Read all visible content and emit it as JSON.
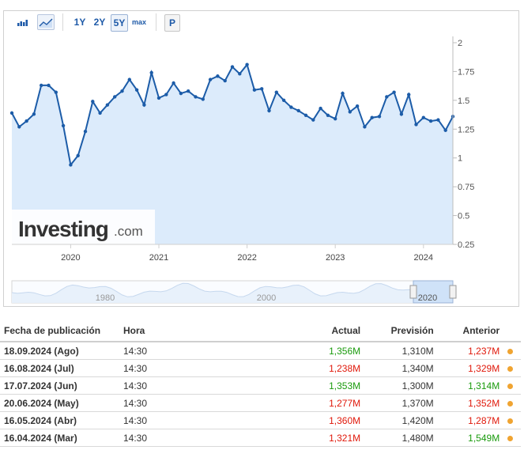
{
  "toolbar": {
    "icons": [
      "bar-chart-icon",
      "line-chart-icon"
    ],
    "ranges": [
      "1Y",
      "2Y",
      "5Y",
      "max"
    ],
    "active_range": "5Y",
    "p_label": "P"
  },
  "brand": {
    "logo": "Investing.com"
  },
  "colors": {
    "line": "#1c5ca8",
    "fill": "#dcebfb",
    "green": "#1a9b0d",
    "red": "#e0180a",
    "dot": "#f0a431"
  },
  "chart_data": {
    "type": "area",
    "x_tick_labels": [
      "2020",
      "2021",
      "2022",
      "2023",
      "2024"
    ],
    "y_tick_labels": [
      "2",
      "1.75",
      "1.5",
      "1.25",
      "1",
      "0.75",
      "0.5",
      "0.25"
    ],
    "ylim": [
      0.25,
      2
    ],
    "y_axis_side": "right",
    "grid": false,
    "x_start": "2019-09",
    "x_end": "2024-08",
    "series": [
      {
        "values": [
          1.39,
          1.27,
          1.32,
          1.38,
          1.63,
          1.63,
          1.57,
          1.28,
          0.94,
          1.02,
          1.23,
          1.49,
          1.39,
          1.46,
          1.53,
          1.58,
          1.68,
          1.59,
          1.46,
          1.74,
          1.52,
          1.55,
          1.65,
          1.56,
          1.58,
          1.53,
          1.51,
          1.68,
          1.71,
          1.67,
          1.79,
          1.73,
          1.81,
          1.59,
          1.6,
          1.41,
          1.57,
          1.5,
          1.44,
          1.41,
          1.37,
          1.33,
          1.43,
          1.37,
          1.34,
          1.56,
          1.4,
          1.45,
          1.27,
          1.35,
          1.36,
          1.53,
          1.57,
          1.38,
          1.55,
          1.29,
          1.35,
          1.32,
          1.33,
          1.24,
          1.36
        ]
      }
    ]
  },
  "navigator": {
    "labels": [
      "1980",
      "2000",
      "2020"
    ]
  },
  "table": {
    "headers": [
      "Fecha de publicación",
      "Hora",
      "Actual",
      "Previsión",
      "Anterior"
    ],
    "rows": [
      {
        "date": "18.09.2024 (Ago)",
        "time": "14:30",
        "actual": "1,356M",
        "actual_color": "green",
        "forecast": "1,310M",
        "previous": "1,237M",
        "previous_color": "red"
      },
      {
        "date": "16.08.2024 (Jul)",
        "time": "14:30",
        "actual": "1,238M",
        "actual_color": "red",
        "forecast": "1,340M",
        "previous": "1,329M",
        "previous_color": "red"
      },
      {
        "date": "17.07.2024 (Jun)",
        "time": "14:30",
        "actual": "1,353M",
        "actual_color": "green",
        "forecast": "1,300M",
        "previous": "1,314M",
        "previous_color": "green"
      },
      {
        "date": "20.06.2024 (May)",
        "time": "14:30",
        "actual": "1,277M",
        "actual_color": "red",
        "forecast": "1,370M",
        "previous": "1,352M",
        "previous_color": "red"
      },
      {
        "date": "16.05.2024 (Abr)",
        "time": "14:30",
        "actual": "1,360M",
        "actual_color": "red",
        "forecast": "1,420M",
        "previous": "1,287M",
        "previous_color": "red"
      },
      {
        "date": "16.04.2024 (Mar)",
        "time": "14:30",
        "actual": "1,321M",
        "actual_color": "red",
        "forecast": "1,480M",
        "previous": "1,549M",
        "previous_color": "green"
      }
    ]
  }
}
